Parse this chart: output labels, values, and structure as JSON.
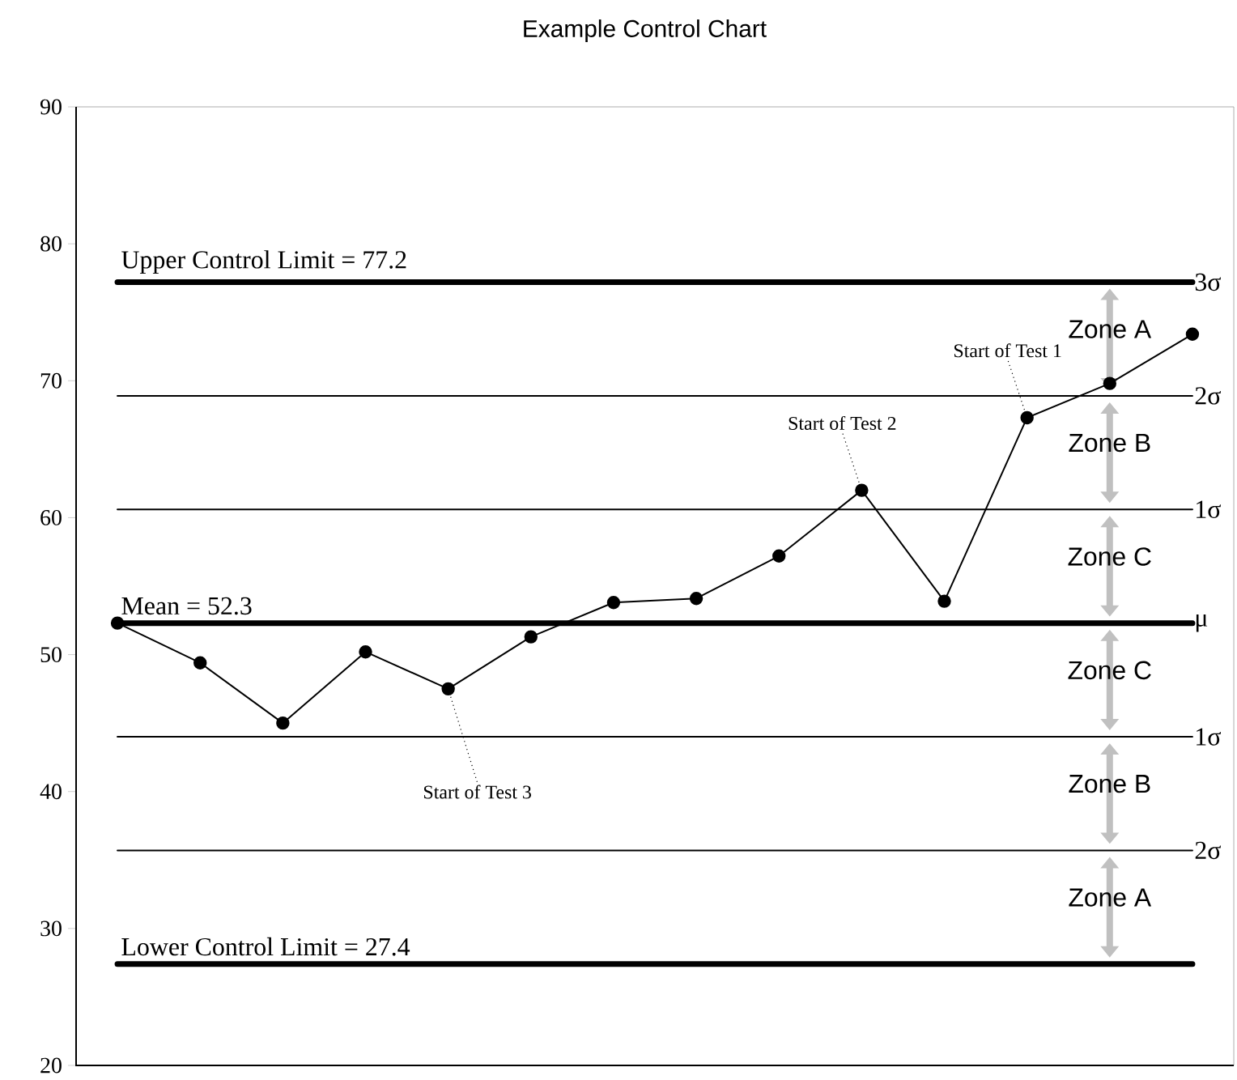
{
  "chart_data": {
    "type": "line",
    "title": "Example Control Chart",
    "categories": [
      null,
      null,
      null,
      null,
      null,
      null,
      null,
      null,
      null,
      null,
      null,
      null,
      null,
      null
    ],
    "series": [
      {
        "color": "#000000",
        "values": [
          52.3,
          49.4,
          45.0,
          50.2,
          47.5,
          51.3,
          53.8,
          54.1,
          57.2,
          62.0,
          53.9,
          67.3,
          69.8,
          73.4
        ]
      }
    ],
    "marker": "circle",
    "line_style": "solid",
    "grid": false,
    "tick_labels": "y",
    "ylim": [
      20,
      90
    ],
    "yticks": [
      20,
      30,
      40,
      50,
      60,
      70,
      80,
      90
    ],
    "ref_lines": [
      {
        "axis": "y",
        "value": 77.2,
        "label": "Upper Control Limit = 77.2",
        "color": "#000000"
      },
      {
        "axis": "y",
        "value": 68.9,
        "label": null,
        "color": "#000000"
      },
      {
        "axis": "y",
        "value": 60.6,
        "label": null,
        "color": "#000000"
      },
      {
        "axis": "y",
        "value": 52.3,
        "label": "Mean = 52.3",
        "color": "#000000"
      },
      {
        "axis": "y",
        "value": 44.0,
        "label": null,
        "color": "#000000"
      },
      {
        "axis": "y",
        "value": 35.7,
        "label": null,
        "color": "#000000"
      },
      {
        "axis": "y",
        "value": 27.4,
        "label": "Lower Control Limit = 27.4",
        "color": "#000000"
      }
    ],
    "annotations": [
      "3σ",
      "2σ",
      "1σ",
      "μ",
      "1σ",
      "2σ",
      "Zone A",
      "Zone B",
      "Zone C",
      "Zone C",
      "Zone B",
      "Zone A",
      "Start of Test 1",
      "Start of Test 2",
      "Start of Test 3"
    ]
  }
}
